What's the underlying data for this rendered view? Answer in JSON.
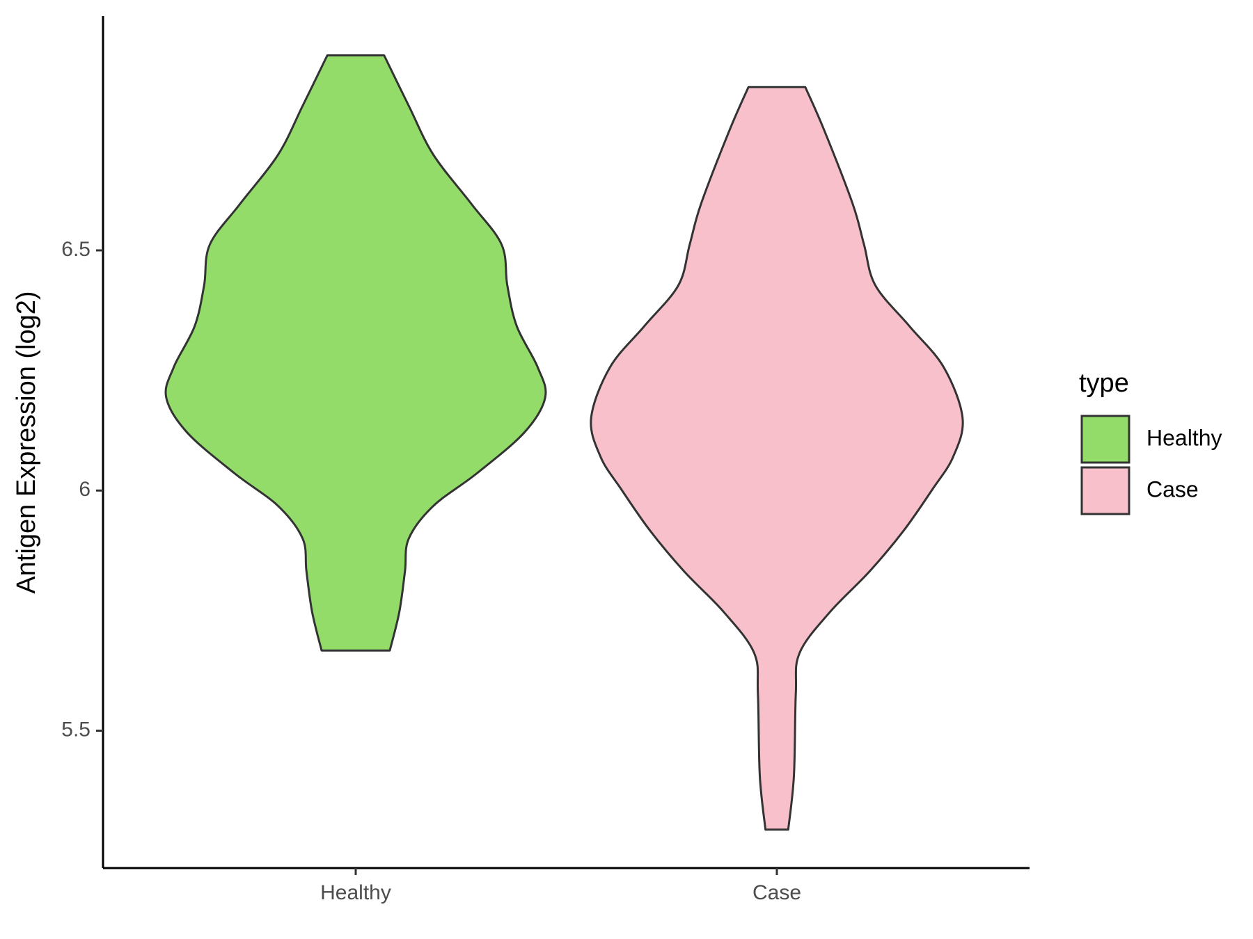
{
  "chart_data": {
    "type": "violin",
    "y_label": "Antigen Expression (log2)",
    "categories": [
      "Healthy",
      "Case"
    ],
    "legend_title": "type",
    "ylim": [
      5.214,
      6.988
    ],
    "yticks": [
      5.5,
      6.0,
      6.5
    ],
    "series": [
      {
        "name": "Healthy",
        "color": "#93DC6A",
        "y": [
          6.906,
          6.801,
          6.699,
          6.597,
          6.512,
          6.427,
          6.342,
          6.257,
          6.194,
          6.121,
          6.036,
          5.968,
          5.9,
          5.832,
          5.747,
          5.667
        ],
        "density": [
          0.15,
          0.28,
          0.41,
          0.61,
          0.77,
          0.8,
          0.85,
          0.96,
          1.0,
          0.89,
          0.64,
          0.41,
          0.28,
          0.26,
          0.23,
          0.18
        ]
      },
      {
        "name": "Case",
        "color": "#F7C0CB",
        "y": [
          6.84,
          6.75,
          6.597,
          6.512,
          6.427,
          6.342,
          6.257,
          6.151,
          6.07,
          6.002,
          5.917,
          5.832,
          5.747,
          5.662,
          5.577,
          5.406,
          5.294
        ],
        "density": [
          0.15,
          0.25,
          0.4,
          0.46,
          0.52,
          0.7,
          0.88,
          0.98,
          0.93,
          0.82,
          0.67,
          0.49,
          0.28,
          0.12,
          0.1,
          0.09,
          0.06
        ]
      }
    ]
  }
}
